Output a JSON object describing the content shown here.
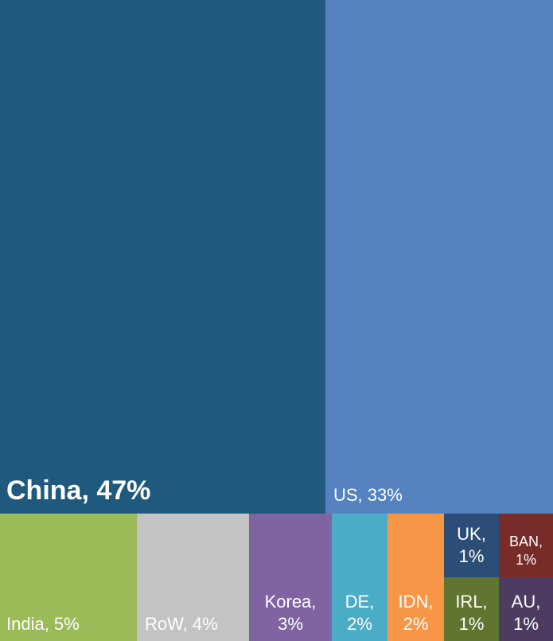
{
  "chart_data": {
    "type": "treemap",
    "items": [
      {
        "key": "china",
        "label": "China, 47%",
        "value": 47,
        "color": "#1f5a7e"
      },
      {
        "key": "us",
        "label": "US, 33%",
        "value": 33,
        "color": "#5682c0"
      },
      {
        "key": "india",
        "label": "India, 5%",
        "value": 5,
        "color": "#9bbb59"
      },
      {
        "key": "row",
        "label": "RoW, 4%",
        "value": 4,
        "color": "#c3c3c3"
      },
      {
        "key": "korea",
        "label": "Korea,\n3%",
        "value": 3,
        "color": "#8064a2"
      },
      {
        "key": "de",
        "label": "DE,\n2%",
        "value": 2,
        "color": "#4bacc6"
      },
      {
        "key": "idn",
        "label": "IDN,\n2%",
        "value": 2,
        "color": "#f79646"
      },
      {
        "key": "uk",
        "label": "UK,\n1%",
        "value": 1,
        "color": "#2c4d75"
      },
      {
        "key": "ban",
        "label": "BAN,\n1%",
        "value": 1,
        "color": "#772c2a"
      },
      {
        "key": "irl",
        "label": "IRL,\n1%",
        "value": 1,
        "color": "#5f7530"
      },
      {
        "key": "au",
        "label": "AU,\n1%",
        "value": 1,
        "color": "#4d3b62"
      }
    ]
  }
}
